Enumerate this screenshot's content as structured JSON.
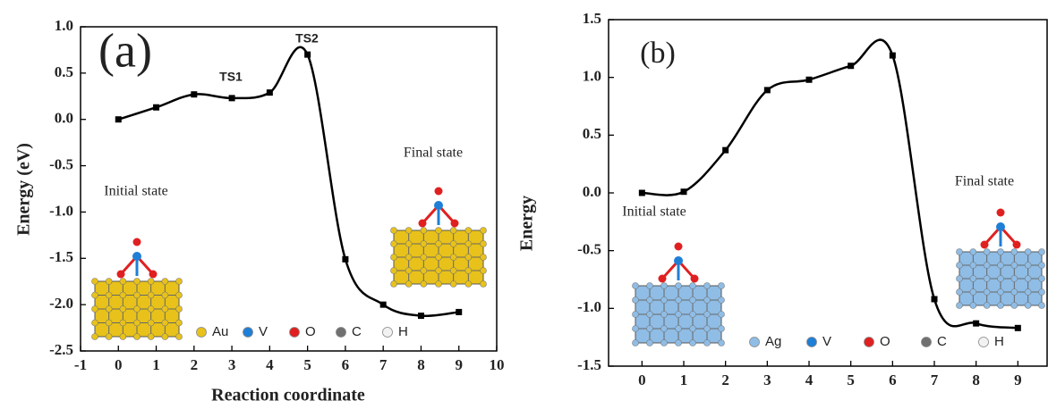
{
  "chart_data": [
    {
      "type": "line",
      "panel_label": "(a)",
      "x_label": "Reaction coordinate",
      "y_label": "Energy (eV)",
      "x": [
        0,
        1,
        2,
        3,
        4,
        5,
        6,
        7,
        8,
        9
      ],
      "values": [
        0.0,
        0.13,
        0.27,
        0.23,
        0.29,
        0.7,
        -1.51,
        -2.0,
        -2.12,
        -2.08
      ],
      "color": "#000000",
      "xlim": [
        -1,
        10
      ],
      "xticks": [
        -1,
        0,
        1,
        2,
        3,
        4,
        5,
        6,
        7,
        8,
        9,
        10
      ],
      "ylim": [
        -2.5,
        1.0
      ],
      "yticks": [
        {
          "value": -2.5,
          "label": "-2.5"
        },
        {
          "value": -2.0,
          "label": "-2.0"
        },
        {
          "value": -1.5,
          "label": "-1.5"
        },
        {
          "value": -1.0,
          "label": "-1.0"
        },
        {
          "value": -0.5,
          "label": "-0.5"
        },
        {
          "value": 0,
          "label": "0.0"
        },
        {
          "value": 0.5,
          "label": "0.5"
        },
        {
          "value": 1.0,
          "label": "1.0"
        }
      ],
      "annotations": [
        "TS1",
        "TS2",
        "Initial state",
        "Final state"
      ],
      "slab_color": "#e8c21a",
      "legend": [
        {
          "name": "Au",
          "color": "#e8c21a"
        },
        {
          "name": "V",
          "color": "#1f7fd6"
        },
        {
          "name": "O",
          "color": "#e02020"
        },
        {
          "name": "C",
          "color": "#707070"
        },
        {
          "name": "H",
          "color": "#f2f2f2"
        }
      ]
    },
    {
      "type": "line",
      "panel_label": "(b)",
      "y_label": "Energy",
      "x": [
        0,
        1,
        2,
        3,
        4,
        5,
        6,
        7,
        8,
        9
      ],
      "values": [
        0.0,
        0.01,
        0.37,
        0.89,
        0.98,
        1.1,
        1.19,
        -0.92,
        -1.13,
        -1.17
      ],
      "color": "#000000",
      "xlim": [
        -0.8,
        9.7
      ],
      "xticks": [
        0,
        1,
        2,
        3,
        4,
        5,
        6,
        7,
        8,
        9
      ],
      "ylim": [
        -1.5,
        1.5
      ],
      "yticks": [
        {
          "value": -1.5,
          "label": "-1.5"
        },
        {
          "value": -1.0,
          "label": "-1.0"
        },
        {
          "value": -0.5,
          "label": "-0.5"
        },
        {
          "value": 0,
          "label": "0.0"
        },
        {
          "value": 0.5,
          "label": "0.5"
        },
        {
          "value": 1.0,
          "label": "1.0"
        },
        {
          "value": 1.5,
          "label": "1.5"
        }
      ],
      "annotations": [
        "Initial state",
        "Final state"
      ],
      "slab_color": "#8fbde6",
      "legend": [
        {
          "name": "Ag",
          "color": "#8fbde6"
        },
        {
          "name": "V",
          "color": "#1f7fd6"
        },
        {
          "name": "O",
          "color": "#e02020"
        },
        {
          "name": "C",
          "color": "#707070"
        },
        {
          "name": "H",
          "color": "#f2f2f2"
        }
      ]
    }
  ]
}
